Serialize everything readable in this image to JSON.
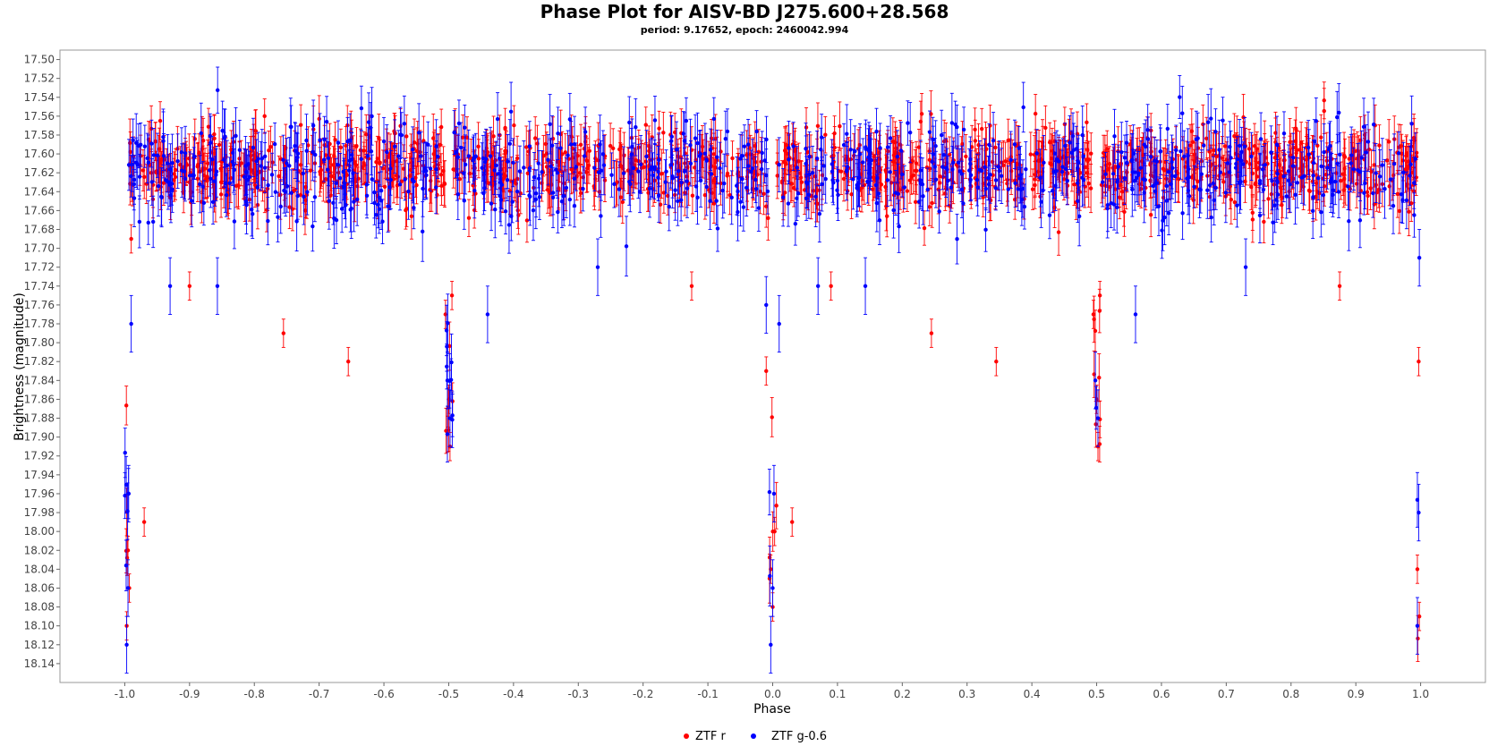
{
  "chart_data": {
    "type": "scatter",
    "title": "Phase Plot for AISV-BD J275.600+28.568",
    "subtitle": "period: 9.17652, epoch: 2460042.994",
    "xlabel": "Phase",
    "ylabel": "Brightness (magnitude)",
    "xlim": [
      -1.1,
      1.1
    ],
    "ylim": [
      18.16,
      17.5
    ],
    "y_inverted": true,
    "x_ticks": [
      "-1.0",
      "-0.9",
      "-0.8",
      "-0.7",
      "-0.6",
      "-0.5",
      "-0.4",
      "-0.3",
      "-0.2",
      "-0.1",
      "0.0",
      "0.1",
      "0.2",
      "0.3",
      "0.4",
      "0.5",
      "0.6",
      "0.7",
      "0.8",
      "0.9",
      "1.0"
    ],
    "y_ticks": [
      "17.50",
      "17.52",
      "17.54",
      "17.56",
      "17.58",
      "17.60",
      "17.62",
      "17.64",
      "17.66",
      "17.68",
      "17.70",
      "17.72",
      "17.74",
      "17.76",
      "17.78",
      "17.80",
      "17.82",
      "17.84",
      "17.86",
      "17.88",
      "17.90",
      "17.92",
      "17.94",
      "17.96",
      "17.98",
      "18.00",
      "18.02",
      "18.04",
      "18.06",
      "18.08",
      "18.10",
      "18.12",
      "18.14"
    ],
    "grid": false,
    "legend_position": "bottom-center",
    "series": [
      {
        "name": "ZTF r",
        "color": "#ff0000",
        "baseline_mag": 17.615,
        "points": [
          {
            "x": -0.995,
            "y": 18.02
          },
          {
            "x": -0.993,
            "y": 18.06
          },
          {
            "x": -0.997,
            "y": 18.1
          },
          {
            "x": -0.99,
            "y": 17.69
          },
          {
            "x": -0.97,
            "y": 17.99
          },
          {
            "x": -0.9,
            "y": 17.74
          },
          {
            "x": -0.755,
            "y": 17.79
          },
          {
            "x": -0.655,
            "y": 17.82
          },
          {
            "x": -0.505,
            "y": 17.77
          },
          {
            "x": -0.5,
            "y": 17.86
          },
          {
            "x": -0.498,
            "y": 17.91
          },
          {
            "x": -0.495,
            "y": 17.75
          },
          {
            "x": -0.003,
            "y": 18.04
          },
          {
            "x": 0.0,
            "y": 18.08
          },
          {
            "x": 0.003,
            "y": 18.0
          },
          {
            "x": -0.01,
            "y": 17.83
          },
          {
            "x": 0.03,
            "y": 17.99
          },
          {
            "x": 0.09,
            "y": 17.74
          },
          {
            "x": 0.245,
            "y": 17.79
          },
          {
            "x": 0.345,
            "y": 17.82
          },
          {
            "x": 0.495,
            "y": 17.77
          },
          {
            "x": 0.5,
            "y": 17.86
          },
          {
            "x": 0.502,
            "y": 17.91
          },
          {
            "x": 0.505,
            "y": 17.75
          },
          {
            "x": 0.995,
            "y": 18.04
          },
          {
            "x": 0.998,
            "y": 18.09
          },
          {
            "x": 0.997,
            "y": 17.82
          },
          {
            "x": 0.875,
            "y": 17.74
          },
          {
            "x": -0.125,
            "y": 17.74
          }
        ]
      },
      {
        "name": "ZTF g-0.6",
        "color": "#0000ff",
        "baseline_mag": 17.62,
        "points": [
          {
            "x": -0.997,
            "y": 18.12
          },
          {
            "x": -0.995,
            "y": 18.06
          },
          {
            "x": -0.994,
            "y": 17.96
          },
          {
            "x": -0.99,
            "y": 17.78
          },
          {
            "x": -0.93,
            "y": 17.74
          },
          {
            "x": -0.857,
            "y": 17.74
          },
          {
            "x": -0.44,
            "y": 17.77
          },
          {
            "x": -0.498,
            "y": 17.88
          },
          {
            "x": -0.502,
            "y": 17.84
          },
          {
            "x": -0.003,
            "y": 18.12
          },
          {
            "x": 0.0,
            "y": 18.06
          },
          {
            "x": 0.002,
            "y": 17.96
          },
          {
            "x": -0.01,
            "y": 17.76
          },
          {
            "x": 0.01,
            "y": 17.78
          },
          {
            "x": 0.07,
            "y": 17.74
          },
          {
            "x": 0.143,
            "y": 17.74
          },
          {
            "x": 0.56,
            "y": 17.77
          },
          {
            "x": 0.502,
            "y": 17.88
          },
          {
            "x": 0.498,
            "y": 17.84
          },
          {
            "x": 0.995,
            "y": 18.1
          },
          {
            "x": 0.997,
            "y": 17.98
          },
          {
            "x": 0.998,
            "y": 17.71
          },
          {
            "x": -0.27,
            "y": 17.72
          },
          {
            "x": 0.73,
            "y": 17.72
          }
        ]
      }
    ]
  }
}
